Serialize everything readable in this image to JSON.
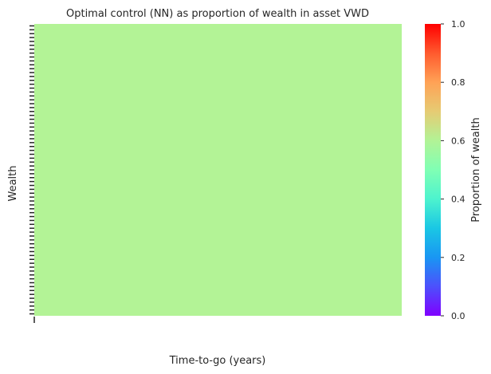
{
  "chart_data": {
    "type": "heatmap",
    "title": "Optimal control (NN) as proportion of wealth in asset VWD",
    "xlabel": "Time-to-go (years)",
    "ylabel": "Wealth",
    "cell_value": 0.6,
    "cell_color": "#b3f396",
    "colorbar": {
      "label": "Proportion of wealth",
      "colormap": "rainbow",
      "range": [
        0.0,
        1.0
      ],
      "ticks": [
        "0.0",
        "0.2",
        "0.4",
        "0.6",
        "0.8",
        "1.0"
      ]
    }
  },
  "colors": {
    "text": "#262626",
    "tick": "#262626"
  }
}
